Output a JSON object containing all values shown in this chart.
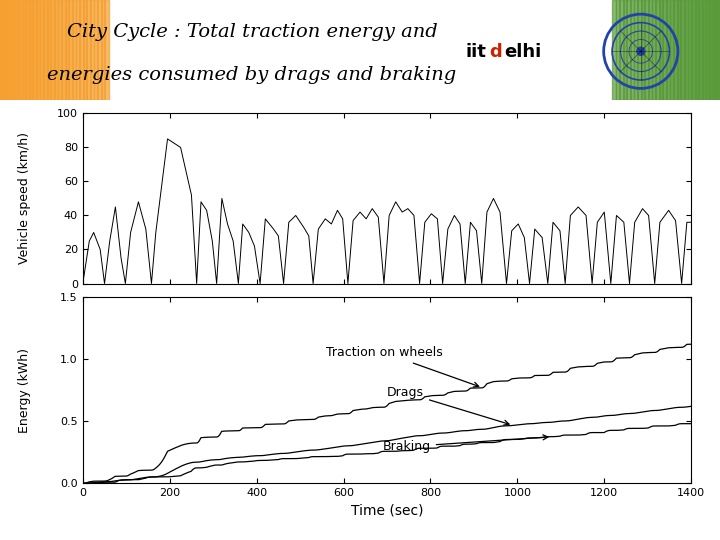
{
  "title_line1": "City Cycle : Total traction energy and",
  "title_line2": "energies consumed by drags and braking",
  "title_fontsize": 14,
  "iitd_text_iit": "#000000",
  "iitd_text_d": "#cc2200",
  "iitd_text_elhi": "#000000",
  "top_bar_color": "#2244aa",
  "subplot1_ylabel": "Vehicle speed (km/h)",
  "subplot1_ylim": [
    0,
    100
  ],
  "subplot1_yticks": [
    0,
    20,
    40,
    60,
    80,
    100
  ],
  "subplot2_ylabel": "Energy (kWh)",
  "subplot2_xlabel": "Time (sec)",
  "subplot2_ylim": [
    0,
    1.5
  ],
  "subplot2_yticks": [
    0,
    0.5,
    1.0,
    1.5
  ],
  "subplot2_xlim": [
    0,
    1400
  ],
  "subplot2_xticks": [
    0,
    200,
    400,
    600,
    800,
    1000,
    1200,
    1400
  ],
  "annotation_traction": "Traction on wheels",
  "annotation_drags": "Drags",
  "annotation_braking": "Braking",
  "left_strip_color": "#f5a030",
  "right_strip_color": "#5a9a3a",
  "blue_bar_color": "#3355aa"
}
